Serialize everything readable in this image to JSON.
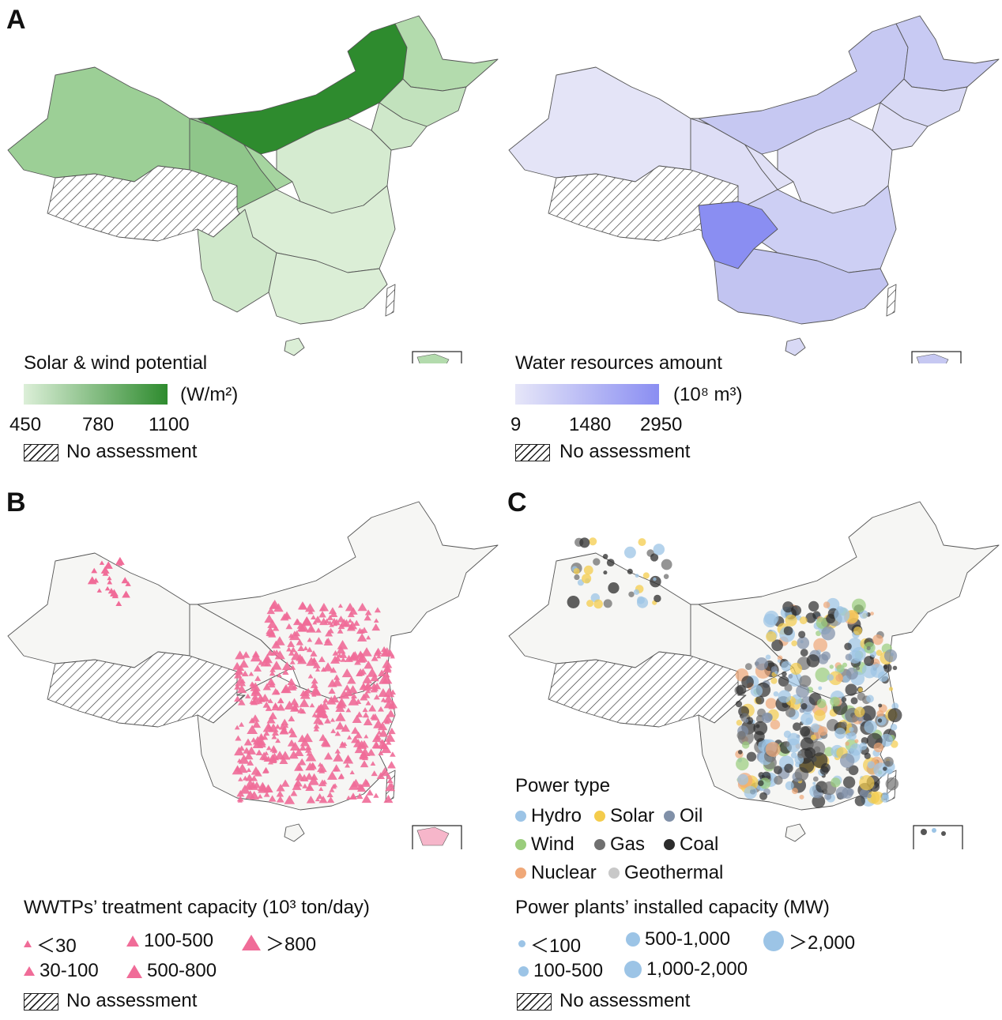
{
  "colors": {
    "solar_low": "#dcefd8",
    "solar_mid": "#9ccf96",
    "solar_high": "#2e8b2e",
    "water_low": "#e6e6f8",
    "water_high": "#8a8ef2",
    "wwtp": "#f06c98",
    "basemap": "#f6f6f4",
    "hydro": "#9cc4e6",
    "solar": "#f4cc4c",
    "oil": "#8090a8",
    "wind": "#9acd7c",
    "gas": "#707070",
    "coal": "#2c2c2c",
    "nuclear": "#f0a878",
    "geothermal": "#c8c8c8"
  },
  "panelA": {
    "label": "A",
    "solar": {
      "title": "Solar & wind potential",
      "unit": "(W/m²)",
      "ticks": [
        "450",
        "780",
        "1100"
      ],
      "range": [
        450,
        1100
      ],
      "no_assessment": "No assessment"
    },
    "water": {
      "title": "Water resources amount",
      "unit": "(10⁸ m³)",
      "ticks": [
        "9",
        "1480",
        "2950"
      ],
      "range": [
        9,
        2950
      ],
      "no_assessment": "No assessment"
    }
  },
  "panelB": {
    "label": "B",
    "legend_title": "WWTPs’ treatment capacity (10³ ton/day)",
    "classes": [
      "＜30",
      "30-100",
      "100-500",
      "500-800",
      "＞800"
    ],
    "no_assessment": "No assessment"
  },
  "panelC": {
    "label": "C",
    "power_type_title": "Power type",
    "types": [
      "Hydro",
      "Solar",
      "Oil",
      "Wind",
      "Gas",
      "Coal",
      "Nuclear",
      "Geothermal"
    ],
    "capacity_title": "Power plants’ installed capacity (MW)",
    "capacity_classes": [
      "＜100",
      "100-500",
      "500-1,000",
      "1,000-2,000",
      "＞2,000"
    ],
    "no_assessment": "No assessment"
  }
}
